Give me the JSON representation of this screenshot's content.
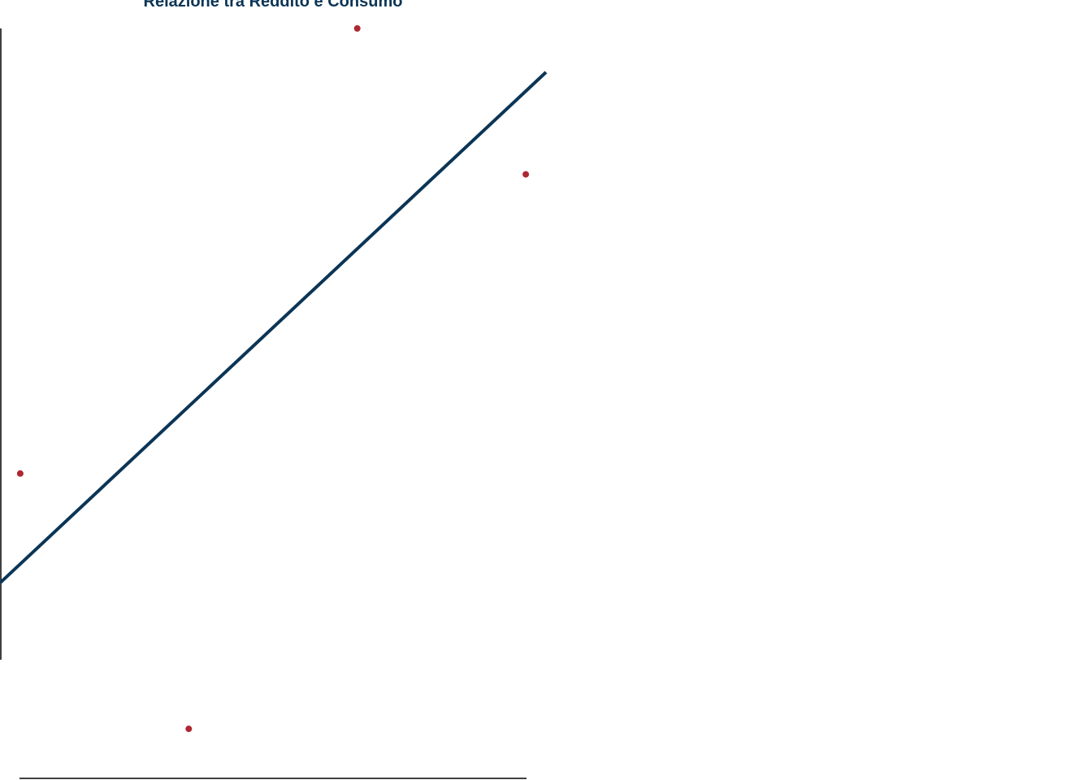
{
  "chart_data": {
    "type": "scatter",
    "title": "Relazione tra Reddito e Consumo",
    "xlabel": "",
    "ylabel": "",
    "xlim": [
      0.88,
      4.12
    ],
    "ylim": [
      9.5,
      19.4
    ],
    "grid": false,
    "legend": "none",
    "points": [
      {
        "x": 1,
        "y": 13.3
      },
      {
        "x": 2,
        "y": 9.8
      },
      {
        "x": 3,
        "y": 19.4
      },
      {
        "x": 4,
        "y": 17.4
      }
    ],
    "trendline": {
      "x": [
        0.88,
        4.12
      ],
      "y": [
        11.8,
        18.8
      ]
    }
  },
  "colors": {
    "title": "#0b3556",
    "axis": "#000000",
    "point": "#ad2832",
    "line": "#0b3556",
    "background": "#ffffff"
  }
}
